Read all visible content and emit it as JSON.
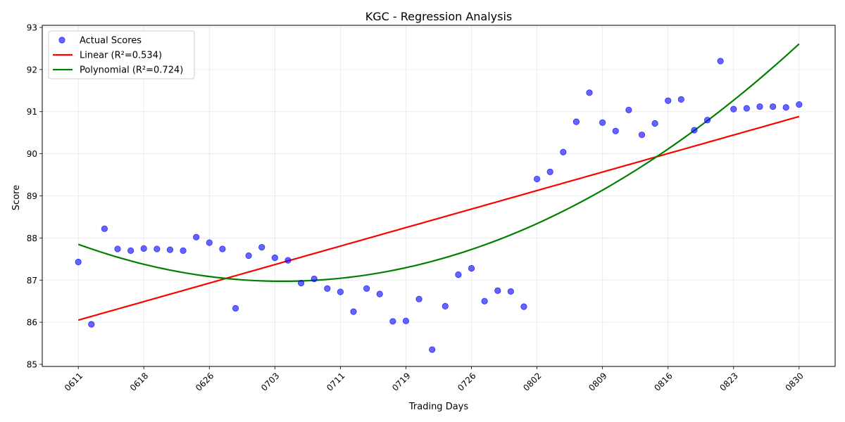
{
  "chart_data": {
    "type": "scatter",
    "title": "KGC - Regression Analysis",
    "xlabel": "Trading Days",
    "ylabel": "Score",
    "ylim": [
      84.95,
      93.05
    ],
    "xlim": [
      -2.75,
      57.75
    ],
    "yticks": [
      85,
      86,
      87,
      88,
      89,
      90,
      91,
      92,
      93
    ],
    "xticks": [
      {
        "pos": 0,
        "label": "0611"
      },
      {
        "pos": 5,
        "label": "0618"
      },
      {
        "pos": 10,
        "label": "0626"
      },
      {
        "pos": 15,
        "label": "0703"
      },
      {
        "pos": 20,
        "label": "0711"
      },
      {
        "pos": 25,
        "label": "0719"
      },
      {
        "pos": 30,
        "label": "0726"
      },
      {
        "pos": 35,
        "label": "0802"
      },
      {
        "pos": 40,
        "label": "0809"
      },
      {
        "pos": 45,
        "label": "0816"
      },
      {
        "pos": 50,
        "label": "0823"
      },
      {
        "pos": 55,
        "label": "0830"
      }
    ],
    "grid": true,
    "legend_position": "top-left",
    "series": [
      {
        "name": "Actual Scores",
        "kind": "scatter",
        "color": "#0000ff",
        "y": [
          87.43,
          85.95,
          88.22,
          87.74,
          87.7,
          87.75,
          87.74,
          87.72,
          87.7,
          88.02,
          87.89,
          87.74,
          86.33,
          87.58,
          87.78,
          87.53,
          87.47,
          86.93,
          87.03,
          86.8,
          86.72,
          86.25,
          86.8,
          86.67,
          86.02,
          86.03,
          86.55,
          85.35,
          86.38,
          87.13,
          87.28,
          86.5,
          86.75,
          86.73,
          86.37,
          89.4,
          89.57,
          90.04,
          90.76,
          91.45,
          90.74,
          90.54,
          91.04,
          90.45,
          90.72,
          91.26,
          91.29,
          90.56,
          90.8,
          92.2,
          91.06,
          91.08,
          91.12,
          91.12,
          91.1,
          91.17
        ]
      },
      {
        "name": "Linear (R²=0.534)",
        "kind": "linear",
        "color": "#ff0000",
        "coefficients": [
          86.05,
          0.0879
        ]
      },
      {
        "name": "Polynomial (R²=0.724)",
        "kind": "polynomial",
        "color": "#008000",
        "coefficients": [
          87.85,
          -0.1128,
          0.003624
        ]
      }
    ]
  }
}
